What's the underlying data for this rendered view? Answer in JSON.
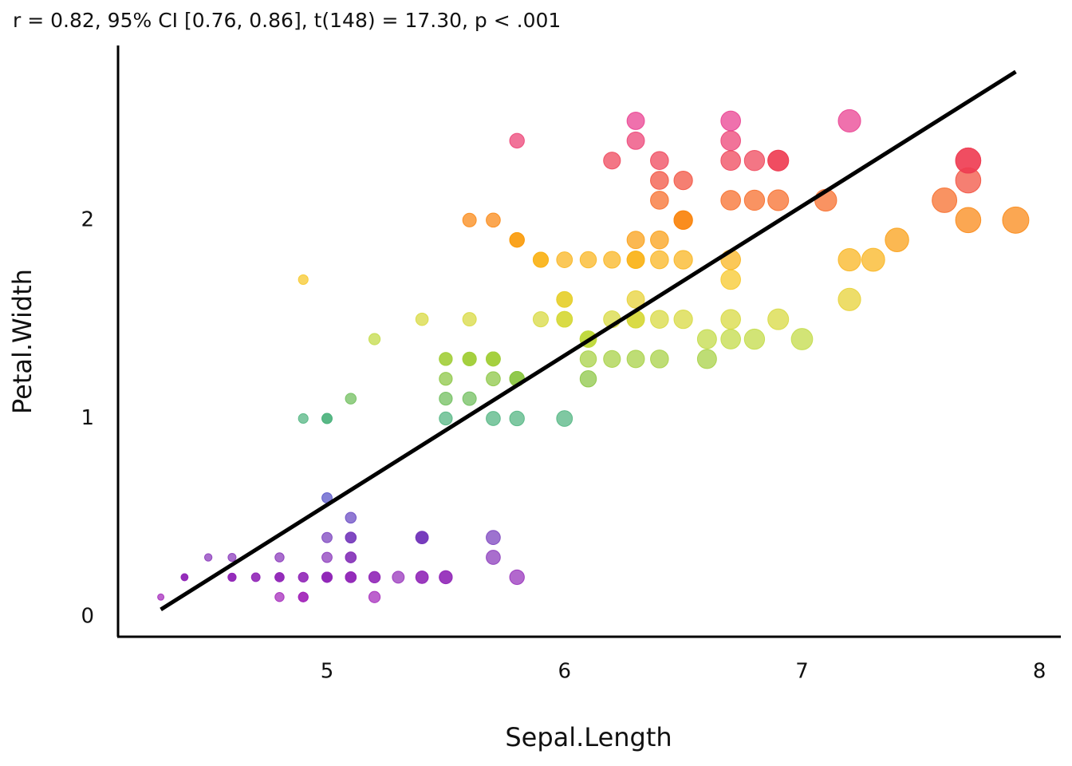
{
  "chart_data": {
    "type": "scatter",
    "subtitle": "r = 0.82, 95% CI [0.76, 0.86], t(148) = 17.30, p < .001",
    "x_label": "Sepal.Length",
    "y_label": "Petal.Width",
    "x": [
      5.1,
      4.9,
      4.7,
      4.6,
      5.0,
      5.4,
      4.6,
      5.0,
      4.4,
      4.9,
      5.4,
      4.8,
      4.8,
      4.3,
      5.8,
      5.7,
      5.4,
      5.1,
      5.7,
      5.1,
      5.4,
      5.1,
      4.6,
      5.1,
      4.8,
      5.0,
      5.0,
      5.2,
      5.2,
      4.7,
      4.8,
      5.4,
      5.2,
      5.5,
      4.9,
      5.0,
      5.5,
      4.9,
      4.4,
      5.1,
      5.0,
      4.5,
      4.4,
      5.0,
      5.1,
      4.8,
      5.1,
      4.6,
      5.3,
      5.0,
      7.0,
      6.4,
      6.9,
      5.5,
      6.5,
      5.7,
      6.3,
      4.9,
      6.6,
      5.2,
      5.0,
      5.9,
      6.0,
      6.1,
      5.6,
      6.7,
      5.6,
      5.8,
      6.2,
      5.6,
      5.9,
      6.1,
      6.3,
      6.1,
      6.4,
      6.6,
      6.8,
      6.7,
      6.0,
      5.7,
      5.5,
      5.5,
      5.8,
      6.0,
      5.4,
      6.0,
      6.7,
      6.3,
      5.6,
      5.5,
      5.5,
      6.1,
      5.8,
      5.0,
      5.6,
      5.7,
      5.7,
      6.2,
      5.1,
      5.7,
      6.3,
      5.8,
      7.1,
      6.3,
      6.5,
      7.6,
      4.9,
      7.3,
      6.7,
      7.2,
      6.5,
      6.4,
      6.8,
      5.7,
      5.8,
      6.4,
      6.5,
      7.7,
      7.7,
      6.0,
      6.9,
      5.6,
      7.7,
      6.3,
      6.7,
      7.2,
      6.2,
      6.1,
      6.4,
      7.2,
      7.4,
      7.9,
      6.4,
      6.3,
      6.1,
      7.7,
      6.3,
      6.4,
      6.0,
      6.9,
      6.7,
      6.9,
      5.8,
      6.8,
      6.7,
      6.7,
      6.3,
      6.5,
      6.2,
      5.9
    ],
    "values": [
      0.2,
      0.2,
      0.2,
      0.2,
      0.2,
      0.4,
      0.3,
      0.2,
      0.2,
      0.1,
      0.2,
      0.2,
      0.1,
      0.1,
      0.2,
      0.4,
      0.4,
      0.3,
      0.3,
      0.3,
      0.2,
      0.4,
      0.2,
      0.5,
      0.2,
      0.2,
      0.4,
      0.2,
      0.2,
      0.2,
      0.2,
      0.4,
      0.1,
      0.2,
      0.2,
      0.2,
      0.2,
      0.1,
      0.2,
      0.2,
      0.3,
      0.3,
      0.2,
      0.6,
      0.4,
      0.3,
      0.2,
      0.2,
      0.2,
      0.2,
      1.4,
      1.5,
      1.5,
      1.3,
      1.5,
      1.3,
      1.6,
      1.0,
      1.3,
      1.4,
      1.0,
      1.5,
      1.0,
      1.4,
      1.3,
      1.4,
      1.5,
      1.0,
      1.5,
      1.1,
      1.8,
      1.3,
      1.5,
      1.2,
      1.3,
      1.4,
      1.4,
      1.7,
      1.5,
      1.0,
      1.1,
      1.0,
      1.2,
      1.6,
      1.5,
      1.6,
      1.5,
      1.3,
      1.3,
      1.3,
      1.2,
      1.4,
      1.2,
      1.0,
      1.3,
      1.2,
      1.3,
      1.3,
      1.1,
      1.3,
      2.5,
      1.9,
      2.1,
      1.8,
      2.2,
      2.1,
      1.7,
      1.8,
      1.8,
      2.5,
      2.0,
      1.9,
      2.1,
      2.0,
      2.4,
      2.3,
      1.8,
      2.2,
      2.3,
      1.5,
      2.3,
      2.0,
      2.0,
      1.8,
      2.1,
      1.8,
      1.8,
      1.8,
      2.1,
      1.6,
      1.9,
      2.0,
      2.2,
      1.5,
      1.4,
      2.3,
      2.4,
      1.8,
      1.8,
      2.1,
      2.4,
      2.3,
      1.9,
      2.3,
      2.5,
      2.3,
      1.9,
      2.0,
      2.3,
      1.8
    ],
    "color_scale": [
      "#a020b8",
      "#7a35b8",
      "#4a4fc8",
      "#2aa9a0",
      "#7cbf3a",
      "#c9dd3c",
      "#f7c51e",
      "#fb8c00",
      "#f03e3e",
      "#e8358a"
    ],
    "line_color": "#000000",
    "xlim": [
      4.12,
      8.09
    ],
    "ylim": [
      -0.1,
      2.88
    ],
    "xticks": [
      5,
      6,
      7,
      8
    ],
    "yticks": [
      0,
      1,
      2
    ]
  }
}
